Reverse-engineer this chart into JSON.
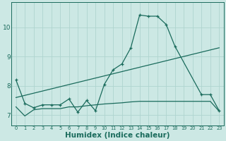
{
  "bg_color": "#cce8e4",
  "grid_color": "#afd4cf",
  "line_color": "#1a6b5c",
  "xlabel": "Humidex (Indice chaleur)",
  "xlabel_fontsize": 7.5,
  "yticks": [
    7,
    8,
    9,
    10
  ],
  "xticks": [
    0,
    1,
    2,
    3,
    4,
    5,
    6,
    7,
    8,
    9,
    10,
    11,
    12,
    13,
    14,
    15,
    16,
    17,
    18,
    19,
    20,
    21,
    22,
    23
  ],
  "xlim": [
    -0.5,
    23.5
  ],
  "ylim": [
    6.65,
    10.85
  ],
  "series1_x": [
    0,
    1,
    2,
    3,
    4,
    5,
    6,
    7,
    8,
    9,
    10,
    11,
    12,
    13,
    14,
    15,
    16,
    17,
    18,
    21,
    22,
    23
  ],
  "series1_y": [
    8.2,
    7.4,
    7.25,
    7.35,
    7.35,
    7.35,
    7.55,
    7.1,
    7.5,
    7.15,
    8.05,
    8.55,
    8.75,
    9.3,
    10.42,
    10.38,
    10.38,
    10.1,
    9.35,
    7.7,
    7.7,
    7.15
  ],
  "series2_x": [
    0,
    1,
    2,
    3,
    4,
    5,
    6,
    7,
    8,
    9,
    10,
    11,
    12,
    13,
    14,
    15,
    16,
    17,
    18,
    19,
    20,
    21,
    22,
    23
  ],
  "series2_y": [
    7.28,
    6.97,
    7.18,
    7.22,
    7.22,
    7.22,
    7.28,
    7.28,
    7.32,
    7.35,
    7.38,
    7.4,
    7.42,
    7.45,
    7.47,
    7.47,
    7.47,
    7.47,
    7.47,
    7.47,
    7.47,
    7.47,
    7.47,
    7.13
  ],
  "series3_x": [
    0,
    23
  ],
  "series3_y": [
    7.6,
    9.3
  ]
}
